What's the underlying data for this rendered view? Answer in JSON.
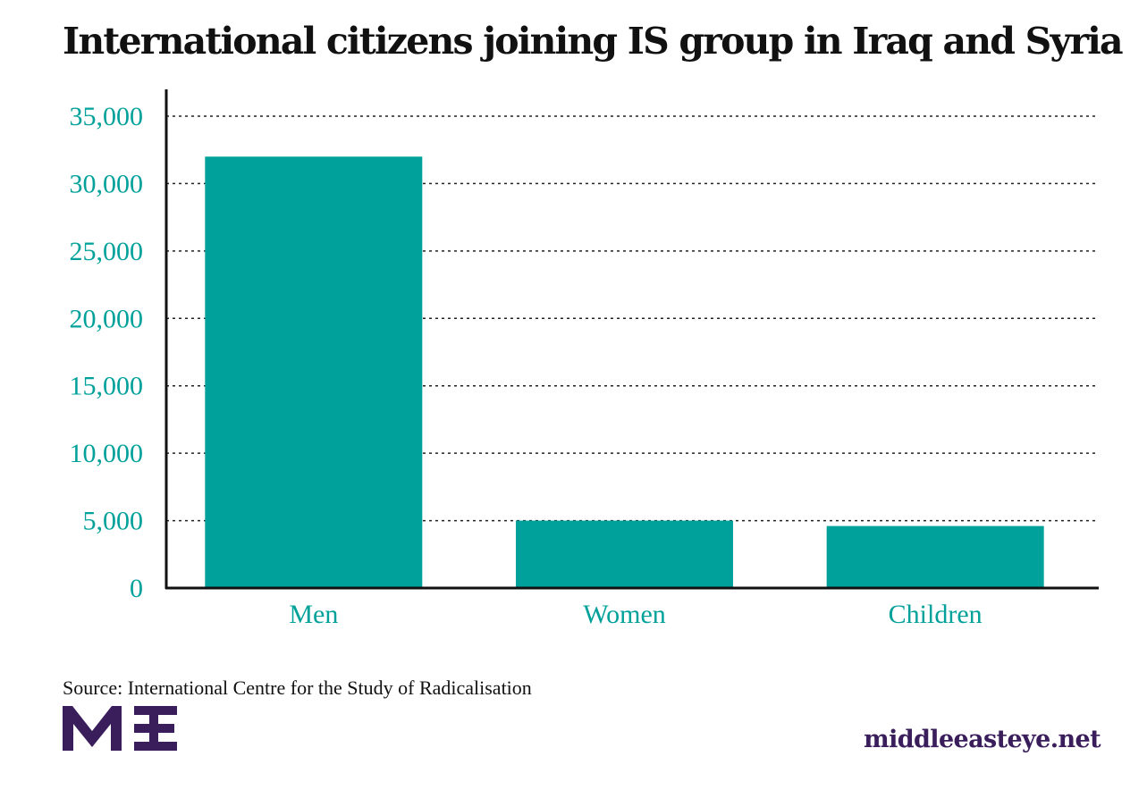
{
  "chart_data": {
    "type": "bar",
    "title": "International citizens joining IS group in Iraq and Syria",
    "categories": [
      "Men",
      "Women",
      "Children"
    ],
    "values": [
      32000,
      5000,
      4600
    ],
    "ylim": [
      0,
      35000
    ],
    "yticks": [
      "0",
      "5,000",
      "10,000",
      "15,000",
      "20,000",
      "25,000",
      "30,000",
      "35,000"
    ],
    "ytick_values": [
      0,
      5000,
      10000,
      15000,
      20000,
      25000,
      30000,
      35000
    ],
    "grid": true,
    "bar_color": "#00a19a",
    "label_color": "#00a19a"
  },
  "footer": {
    "source": "Source: International Centre for the Study of Radicalisation",
    "site": "middleeasteye.net",
    "logo_text": "MEE",
    "logo_color": "#3a1e5c"
  }
}
